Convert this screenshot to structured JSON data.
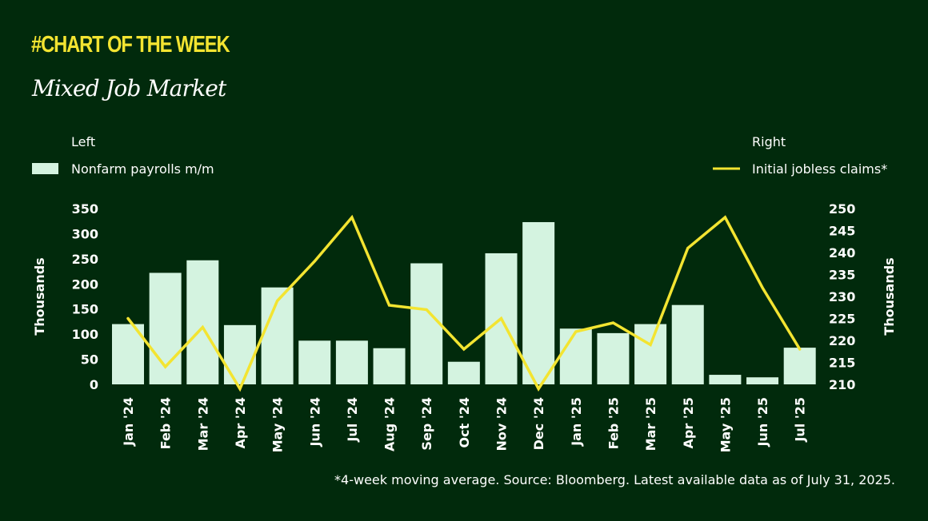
{
  "header": {
    "tag": "#CHART OF THE WEEK",
    "title": "Mixed Job Market"
  },
  "footnote": "*4-week moving average. Source: Bloomberg. Latest available data as of July 31, 2025.",
  "colors": {
    "background": "#012a0c",
    "bar": "#d4f3e0",
    "line": "#f3e431",
    "text": "#ffffff"
  },
  "chart_data": {
    "type": "bar",
    "categories": [
      "Jan '24",
      "Feb '24",
      "Mar '24",
      "Apr '24",
      "May '24",
      "Jun '24",
      "Jul '24",
      "Aug '24",
      "Sep '24",
      "Oct '24",
      "Nov '24",
      "Dec '24",
      "Jan '25",
      "Feb '25",
      "Mar '25",
      "Apr '25",
      "May '25",
      "Jun '25",
      "Jul '25"
    ],
    "series": [
      {
        "name": "Nonfarm payrolls m/m",
        "type": "bar",
        "axis": "left",
        "values": [
          120,
          222,
          247,
          118,
          193,
          87,
          87,
          72,
          241,
          45,
          261,
          323,
          111,
          102,
          120,
          158,
          19,
          14,
          73
        ]
      },
      {
        "name": "Initial jobless claims*",
        "type": "line",
        "axis": "right",
        "values": [
          225,
          214,
          223,
          209,
          229,
          238,
          248,
          228,
          227,
          218,
          225,
          209,
          222,
          224,
          219,
          241,
          248,
          232,
          218
        ]
      }
    ],
    "left_axis": {
      "heading": "Left",
      "label": "Thousands",
      "range": [
        0,
        350
      ],
      "ticks": [
        "0",
        "50",
        "100",
        "150",
        "200",
        "250",
        "300",
        "350"
      ]
    },
    "right_axis": {
      "heading": "Right",
      "label": "Thousands",
      "range": [
        210,
        250
      ],
      "ticks": [
        "210",
        "215",
        "220",
        "225",
        "230",
        "235",
        "240",
        "245",
        "250"
      ]
    },
    "grid": false,
    "legend": "top"
  }
}
